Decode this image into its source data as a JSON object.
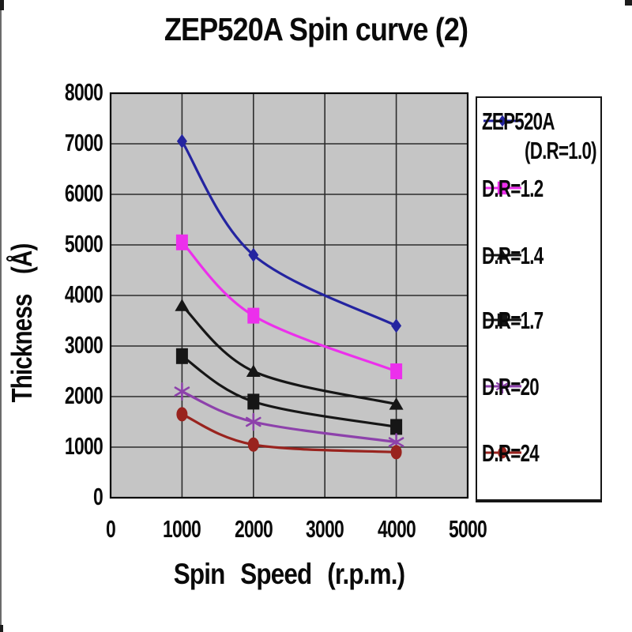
{
  "title": "ZEP520A Spin curve (2)",
  "chart_data": {
    "type": "line",
    "title": "ZEP520A Spin curve (2)",
    "xlabel": "Spin Speed (r.p.m.)",
    "ylabel": "Thickness (Å)",
    "xlim": [
      0,
      5000
    ],
    "ylim": [
      0,
      8000
    ],
    "x_ticks": [
      "0",
      "1000",
      "2000",
      "3000",
      "4000",
      "5000"
    ],
    "y_ticks": [
      "0",
      "1000",
      "2000",
      "3000",
      "4000",
      "5000",
      "6000",
      "7000",
      "8000"
    ],
    "grid": true,
    "legend_position": "right",
    "plot_background": "#c5c5c5",
    "gridline_color": "#2d2d2d",
    "frame_color": "#000000",
    "x": [
      1000,
      2000,
      4000
    ],
    "series": [
      {
        "name": "ZEP520A (D.R=1.0)",
        "legend_lines": [
          "ZEP520A",
          "(D.R=1.0)"
        ],
        "color": "#2424a0",
        "marker": "diamond",
        "values": [
          7050,
          4800,
          3400
        ]
      },
      {
        "name": "D.R=1.2",
        "legend_lines": [
          "D.R=1.2"
        ],
        "color": "#ec2fec",
        "marker": "square",
        "values": [
          5050,
          3600,
          2500
        ]
      },
      {
        "name": "D.R=1.4",
        "legend_lines": [
          "D.R=1.4"
        ],
        "color": "#161616",
        "marker": "triangle",
        "values": [
          3800,
          2500,
          1850
        ]
      },
      {
        "name": "D.R=1.7",
        "legend_lines": [
          "D.R=1.7"
        ],
        "color": "#161616",
        "marker": "square",
        "values": [
          2800,
          1900,
          1400
        ]
      },
      {
        "name": "D.R=20",
        "legend_lines": [
          "D.R=20"
        ],
        "color": "#8d41ab",
        "marker": "asterisk",
        "values": [
          2100,
          1500,
          1100
        ]
      },
      {
        "name": "D.R=24",
        "legend_lines": [
          "D.R=24"
        ],
        "color": "#99231e",
        "marker": "circle",
        "values": [
          1650,
          1050,
          900
        ]
      }
    ]
  }
}
